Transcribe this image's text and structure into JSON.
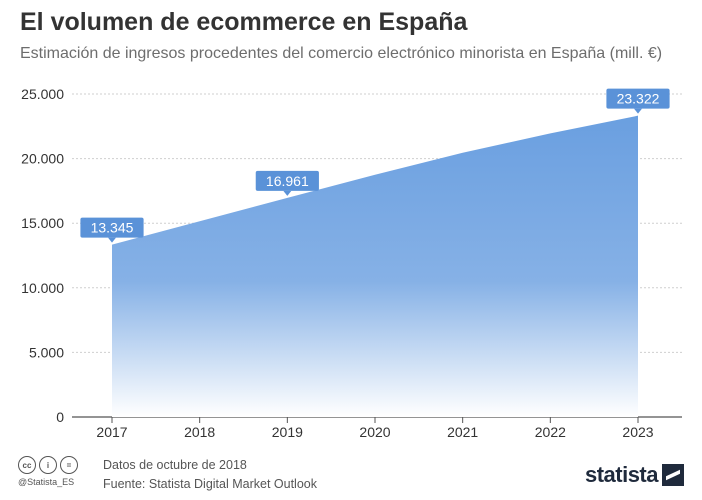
{
  "header": {
    "title": "El volumen de ecommerce en España",
    "subtitle": "Estimación de ingresos procedentes del comercio electrónico minorista en España (mill. €)"
  },
  "footer": {
    "handle": "@Statista_ES",
    "note_date": "Datos de octubre de 2018",
    "note_source": "Fuente: Statista Digital Market Outlook",
    "brand": "statista"
  },
  "colors": {
    "area_top": "#6a9fe0",
    "area_bottom": "#ffffff",
    "label_bg": "#5a92d8",
    "grid": "#cfcfcf",
    "text": "#333333"
  },
  "chart_data": {
    "type": "area",
    "title": "El volumen de ecommerce en España",
    "subtitle": "Estimación de ingresos procedentes del comercio electrónico minorista en España (mill. €)",
    "xlabel": "",
    "ylabel": "",
    "categories": [
      "2017",
      "2018",
      "2019",
      "2020",
      "2021",
      "2022",
      "2023"
    ],
    "values": [
      13345,
      15150,
      16961,
      18750,
      20450,
      21950,
      23322
    ],
    "ylim": [
      0,
      25000
    ],
    "yticks": [
      0,
      5000,
      10000,
      15000,
      20000,
      25000
    ],
    "ytick_labels": [
      "0",
      "5.000",
      "10.000",
      "15.000",
      "20.000",
      "25.000"
    ],
    "annotations": [
      {
        "category": "2017",
        "label": "13.345"
      },
      {
        "category": "2019",
        "label": "16.961"
      },
      {
        "category": "2023",
        "label": "23.322"
      }
    ],
    "grid": true
  }
}
